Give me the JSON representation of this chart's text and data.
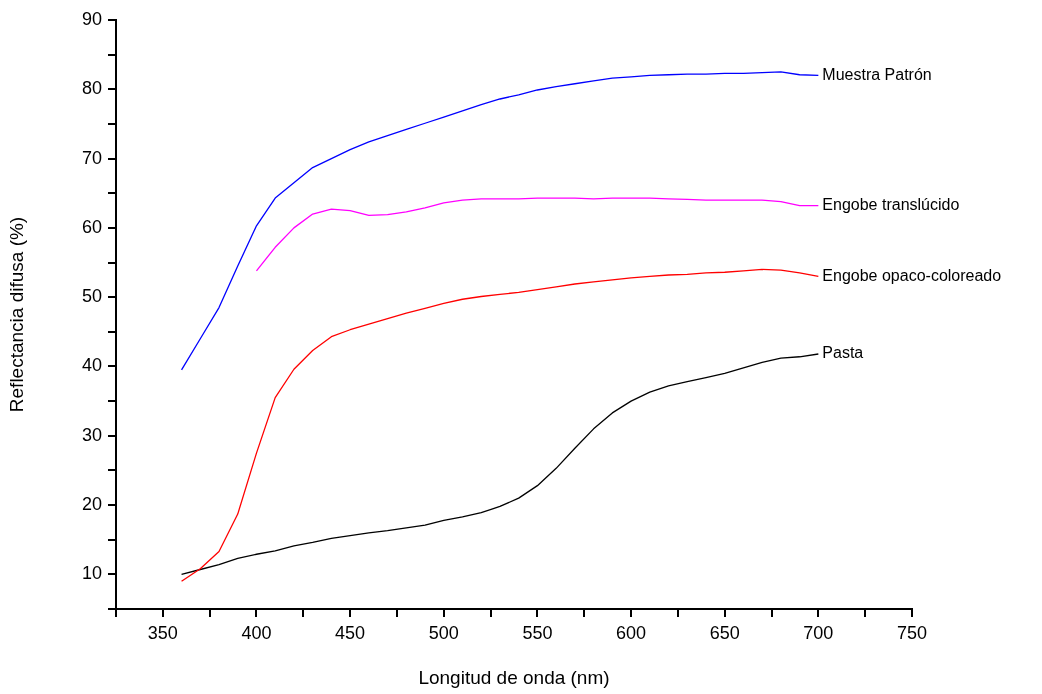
{
  "chart_data": {
    "type": "line",
    "xlabel": "Longitud de onda (nm)",
    "ylabel": "Reflectancia difusa (%)",
    "xlim": [
      325,
      750
    ],
    "ylim": [
      5,
      90
    ],
    "xticks": [
      {
        "value": 325,
        "label": null
      },
      350,
      {
        "value": 375,
        "label": null
      },
      400,
      {
        "value": 425,
        "label": null
      },
      450,
      {
        "value": 475,
        "label": null
      },
      500,
      {
        "value": 525,
        "label": null
      },
      550,
      {
        "value": 575,
        "label": null
      },
      600,
      {
        "value": 625,
        "label": null
      },
      650,
      {
        "value": 675,
        "label": null
      },
      700,
      {
        "value": 725,
        "label": null
      },
      750
    ],
    "yticks": [
      {
        "value": 5,
        "label": null
      },
      10,
      {
        "value": 15,
        "label": null
      },
      20,
      {
        "value": 25,
        "label": null
      },
      30,
      {
        "value": 35,
        "label": null
      },
      40,
      {
        "value": 45,
        "label": null
      },
      50,
      {
        "value": 55,
        "label": null
      },
      60,
      {
        "value": 65,
        "label": null
      },
      70,
      {
        "value": 75,
        "label": null
      },
      80,
      {
        "value": 85,
        "label": null
      },
      90
    ],
    "grid": false,
    "legend": false,
    "marker": "none",
    "line_style": "solid",
    "x": [
      360,
      370,
      380,
      390,
      400,
      410,
      420,
      430,
      440,
      450,
      460,
      470,
      480,
      490,
      500,
      510,
      520,
      530,
      540,
      550,
      560,
      570,
      580,
      590,
      600,
      610,
      620,
      630,
      640,
      650,
      660,
      670,
      680,
      690,
      700
    ],
    "series": [
      {
        "name": "Muestra Patrón",
        "color": "#0000ff",
        "values": [
          39.5,
          44,
          48.5,
          54.5,
          60.3,
          64.3,
          66.5,
          68.7,
          70,
          71.3,
          72.4,
          73.3,
          74.2,
          75.1,
          76,
          76.9,
          77.8,
          78.6,
          79.2,
          79.9,
          80.4,
          80.8,
          81.2,
          81.6,
          81.8,
          82,
          82.1,
          82.2,
          82.2,
          82.3,
          82.3,
          82.4,
          82.5,
          82.1,
          82
        ]
      },
      {
        "name": "Engobe translúcido",
        "color": "#ff00ff",
        "values": [
          null,
          null,
          null,
          null,
          53.8,
          57.2,
          60,
          62,
          62.7,
          62.5,
          61.8,
          61.9,
          62.3,
          62.9,
          63.6,
          64,
          64.2,
          64.2,
          64.2,
          64.3,
          64.3,
          64.3,
          64.2,
          64.3,
          64.3,
          64.3,
          64.2,
          64.1,
          64,
          64,
          64,
          64,
          63.8,
          63.2,
          63.2
        ]
      },
      {
        "name": "Engobe opaco-coloreado",
        "color": "#ff0000",
        "values": [
          9,
          10.8,
          13.3,
          18.7,
          27.5,
          35.5,
          39.6,
          42.3,
          44.3,
          45.3,
          46.1,
          46.9,
          47.7,
          48.4,
          49.1,
          49.7,
          50.1,
          50.4,
          50.7,
          51.1,
          51.5,
          51.9,
          52.2,
          52.5,
          52.8,
          53,
          53.2,
          53.3,
          53.5,
          53.6,
          53.8,
          54,
          53.9,
          53.5,
          53
        ]
      },
      {
        "name": "Pasta",
        "color": "#000000",
        "values": [
          10,
          10.7,
          11.4,
          12.3,
          12.9,
          13.4,
          14.1,
          14.6,
          15.2,
          15.6,
          16,
          16.3,
          16.7,
          17.1,
          17.8,
          18.3,
          18.9,
          19.8,
          21,
          22.8,
          25.3,
          28.2,
          31,
          33.3,
          35,
          36.3,
          37.2,
          37.8,
          38.4,
          39,
          39.8,
          40.6,
          41.2,
          41.4,
          41.8
        ]
      }
    ]
  }
}
